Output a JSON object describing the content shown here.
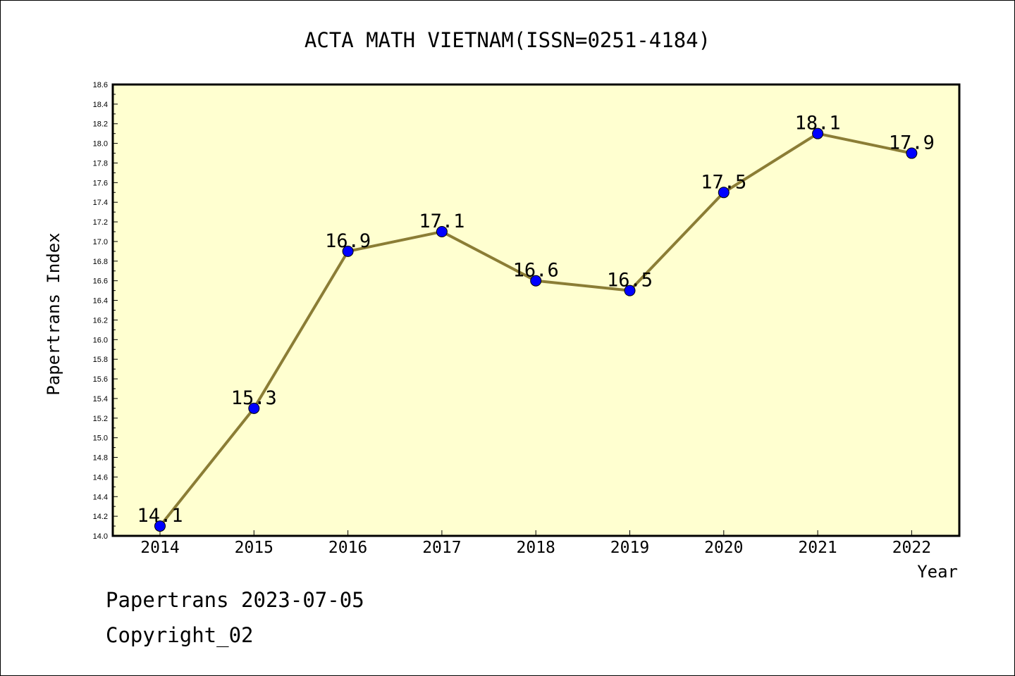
{
  "chart_data": {
    "type": "line",
    "title": "ACTA MATH VIETNAM(ISSN=0251-4184)",
    "xlabel": "Year",
    "ylabel": "Papertrans Index",
    "categories": [
      "2014",
      "2015",
      "2016",
      "2017",
      "2018",
      "2019",
      "2020",
      "2021",
      "2022"
    ],
    "values": [
      14.1,
      15.3,
      16.9,
      17.1,
      16.6,
      16.5,
      17.5,
      18.1,
      17.9
    ],
    "data_labels": [
      "14.1",
      "15.3",
      "16.9",
      "17.1",
      "16.6",
      "16.5",
      "17.5",
      "18.1",
      "17.9"
    ],
    "ylim": [
      14.0,
      18.6
    ],
    "y_ticks": [
      "14.0",
      "14.2",
      "14.4",
      "14.6",
      "14.8",
      "15.0",
      "15.2",
      "15.4",
      "15.6",
      "15.8",
      "16.0",
      "16.2",
      "16.4",
      "16.6",
      "16.8",
      "17.0",
      "17.2",
      "17.4",
      "17.6",
      "17.8",
      "18.0",
      "18.2",
      "18.4",
      "18.6"
    ],
    "grid": false,
    "legend": "none",
    "colors": {
      "plot_background": "#ffffd0",
      "line": "#8b7d35",
      "marker": "#0000ff",
      "axis": "#000000"
    }
  },
  "footer": {
    "line1": "Papertrans 2023-07-05",
    "line2": "Copyright_02"
  }
}
